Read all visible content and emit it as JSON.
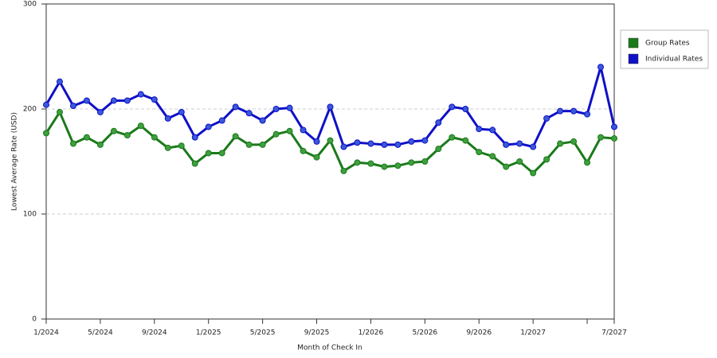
{
  "chart_data": {
    "type": "line",
    "x_label": "Month of Check In",
    "y_label": "Lowest Average Rate (USD)",
    "categories": [
      "1/2024",
      null,
      null,
      null,
      "5/2024",
      null,
      null,
      null,
      "9/2024",
      null,
      null,
      null,
      "1/2025",
      null,
      null,
      null,
      "5/2025",
      null,
      null,
      null,
      "9/2025",
      null,
      null,
      null,
      "1/2026",
      null,
      null,
      null,
      "5/2026",
      null,
      null,
      null,
      "9/2026",
      null,
      null,
      null,
      "1/2027",
      null,
      null,
      null,
      null,
      null,
      "7/2027"
    ],
    "series": [
      {
        "name": "Group Rates",
        "color": "#1a7a1a",
        "marker_color": "#3f9f3f",
        "values": [
          177,
          197,
          167,
          173,
          166,
          179,
          175,
          184,
          173,
          163,
          165,
          148,
          158,
          158,
          174,
          166,
          166,
          176,
          179,
          160,
          154,
          170,
          141,
          149,
          148,
          145,
          146,
          149,
          150,
          162,
          173,
          170,
          159,
          155,
          145,
          150,
          139,
          152,
          167,
          169,
          149,
          173,
          172
        ]
      },
      {
        "name": "Individual Rates",
        "color": "#1010c8",
        "marker_color": "#3a5ad8",
        "values": [
          204,
          226,
          203,
          208,
          197,
          208,
          208,
          214,
          209,
          191,
          197,
          173,
          183,
          189,
          202,
          196,
          189,
          200,
          201,
          180,
          169,
          202,
          164,
          168,
          167,
          166,
          166,
          169,
          170,
          187,
          202,
          200,
          181,
          180,
          166,
          167,
          164,
          191,
          198,
          198,
          195,
          240,
          183
        ]
      }
    ],
    "ylim": [
      0,
      300
    ],
    "yticks": [
      0,
      100,
      200,
      300
    ],
    "grid": true,
    "legend": "right"
  }
}
